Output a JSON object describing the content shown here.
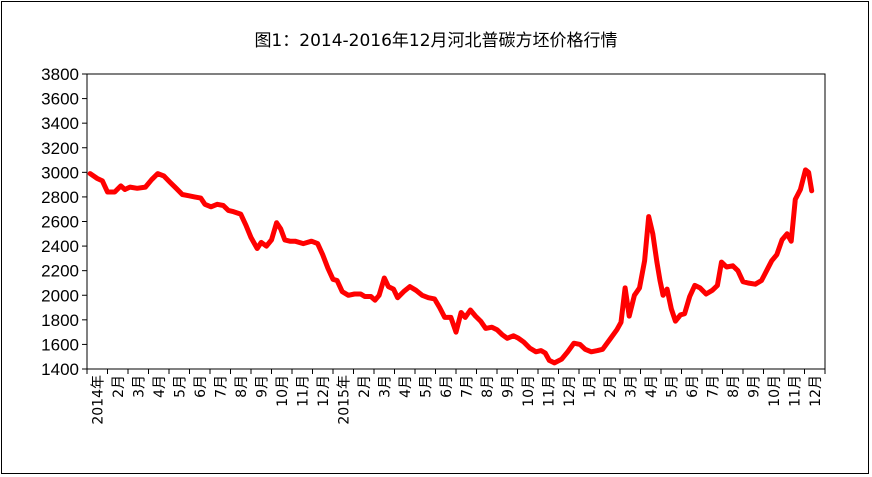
{
  "chart_data": {
    "type": "line",
    "title": "图1：2014-2016年12月河北普碳方坯价格行情",
    "xlabel": "",
    "ylabel": "",
    "ylim": [
      1400,
      3800
    ],
    "yticks": [
      3800,
      3600,
      3400,
      3200,
      3000,
      2800,
      2600,
      2400,
      2200,
      2000,
      1800,
      1600,
      1400
    ],
    "x_tick_labels": [
      "2014年",
      "2月",
      "3月",
      "4月",
      "5月",
      "6月",
      "7月",
      "8月",
      "9月",
      "10月",
      "11月",
      "12月",
      "2015年",
      "2月",
      "3月",
      "4月",
      "5月",
      "6月",
      "7月",
      "8月",
      "9月",
      "10月",
      "11月",
      "12月",
      "1月",
      "2月",
      "3月",
      "4月",
      "5月",
      "6月",
      "7月",
      "8月",
      "9月",
      "10月",
      "11月",
      "12月"
    ],
    "grid": false,
    "legend": "none",
    "line_color": "#ff0000",
    "x_start": "2014-01",
    "x_end": "2016-12",
    "series": [
      {
        "values": [
          [
            0.0,
            2990
          ],
          [
            0.35,
            2950
          ],
          [
            0.6,
            2930
          ],
          [
            0.85,
            2840
          ],
          [
            1.2,
            2840
          ],
          [
            1.5,
            2890
          ],
          [
            1.7,
            2860
          ],
          [
            1.95,
            2880
          ],
          [
            2.3,
            2870
          ],
          [
            2.7,
            2880
          ],
          [
            3.0,
            2940
          ],
          [
            3.3,
            2990
          ],
          [
            3.6,
            2970
          ],
          [
            3.9,
            2920
          ],
          [
            4.2,
            2870
          ],
          [
            4.5,
            2820
          ],
          [
            4.8,
            2810
          ],
          [
            5.1,
            2800
          ],
          [
            5.4,
            2790
          ],
          [
            5.6,
            2740
          ],
          [
            5.9,
            2720
          ],
          [
            6.2,
            2740
          ],
          [
            6.5,
            2730
          ],
          [
            6.75,
            2690
          ],
          [
            7.0,
            2680
          ],
          [
            7.35,
            2660
          ],
          [
            7.6,
            2570
          ],
          [
            7.85,
            2470
          ],
          [
            8.15,
            2380
          ],
          [
            8.35,
            2430
          ],
          [
            8.6,
            2400
          ],
          [
            8.85,
            2450
          ],
          [
            9.1,
            2590
          ],
          [
            9.3,
            2540
          ],
          [
            9.5,
            2450
          ],
          [
            9.75,
            2440
          ],
          [
            10.0,
            2440
          ],
          [
            10.4,
            2420
          ],
          [
            10.8,
            2440
          ],
          [
            11.1,
            2420
          ],
          [
            11.35,
            2330
          ],
          [
            11.6,
            2220
          ],
          [
            11.85,
            2130
          ],
          [
            12.05,
            2120
          ],
          [
            12.3,
            2030
          ],
          [
            12.6,
            2000
          ],
          [
            12.9,
            2010
          ],
          [
            13.2,
            2010
          ],
          [
            13.4,
            1990
          ],
          [
            13.7,
            1990
          ],
          [
            13.9,
            1960
          ],
          [
            14.1,
            2000
          ],
          [
            14.35,
            2140
          ],
          [
            14.55,
            2070
          ],
          [
            14.8,
            2050
          ],
          [
            15.0,
            1980
          ],
          [
            15.3,
            2030
          ],
          [
            15.6,
            2070
          ],
          [
            15.9,
            2040
          ],
          [
            16.2,
            2000
          ],
          [
            16.5,
            1980
          ],
          [
            16.8,
            1970
          ],
          [
            17.05,
            1900
          ],
          [
            17.3,
            1820
          ],
          [
            17.6,
            1820
          ],
          [
            17.85,
            1700
          ],
          [
            18.1,
            1860
          ],
          [
            18.3,
            1820
          ],
          [
            18.55,
            1880
          ],
          [
            18.8,
            1830
          ],
          [
            19.05,
            1790
          ],
          [
            19.3,
            1730
          ],
          [
            19.6,
            1740
          ],
          [
            19.85,
            1720
          ],
          [
            20.1,
            1680
          ],
          [
            20.35,
            1650
          ],
          [
            20.65,
            1670
          ],
          [
            20.9,
            1650
          ],
          [
            21.15,
            1620
          ],
          [
            21.45,
            1570
          ],
          [
            21.75,
            1540
          ],
          [
            22.0,
            1550
          ],
          [
            22.2,
            1530
          ],
          [
            22.4,
            1470
          ],
          [
            22.65,
            1450
          ],
          [
            23.0,
            1480
          ],
          [
            23.3,
            1540
          ],
          [
            23.6,
            1610
          ],
          [
            23.9,
            1600
          ],
          [
            24.15,
            1560
          ],
          [
            24.45,
            1540
          ],
          [
            24.75,
            1550
          ],
          [
            25.0,
            1560
          ],
          [
            25.35,
            1640
          ],
          [
            25.7,
            1720
          ],
          [
            25.9,
            1780
          ],
          [
            26.1,
            2060
          ],
          [
            26.3,
            1830
          ],
          [
            26.55,
            2000
          ],
          [
            26.8,
            2060
          ],
          [
            27.05,
            2280
          ],
          [
            27.25,
            2640
          ],
          [
            27.45,
            2500
          ],
          [
            27.65,
            2270
          ],
          [
            27.8,
            2120
          ],
          [
            27.95,
            2000
          ],
          [
            28.15,
            2050
          ],
          [
            28.35,
            1890
          ],
          [
            28.55,
            1790
          ],
          [
            28.8,
            1840
          ],
          [
            29.0,
            1850
          ],
          [
            29.25,
            1990
          ],
          [
            29.5,
            2080
          ],
          [
            29.75,
            2060
          ],
          [
            30.05,
            2010
          ],
          [
            30.35,
            2040
          ],
          [
            30.6,
            2080
          ],
          [
            30.8,
            2270
          ],
          [
            31.05,
            2230
          ],
          [
            31.35,
            2240
          ],
          [
            31.6,
            2200
          ],
          [
            31.85,
            2110
          ],
          [
            32.1,
            2100
          ],
          [
            32.45,
            2090
          ],
          [
            32.75,
            2120
          ],
          [
            33.0,
            2200
          ],
          [
            33.25,
            2280
          ],
          [
            33.5,
            2330
          ],
          [
            33.75,
            2450
          ],
          [
            34.0,
            2500
          ],
          [
            34.2,
            2440
          ],
          [
            34.4,
            2780
          ],
          [
            34.65,
            2860
          ],
          [
            34.9,
            3020
          ],
          [
            35.05,
            3000
          ],
          [
            35.2,
            2850
          ]
        ]
      }
    ]
  }
}
